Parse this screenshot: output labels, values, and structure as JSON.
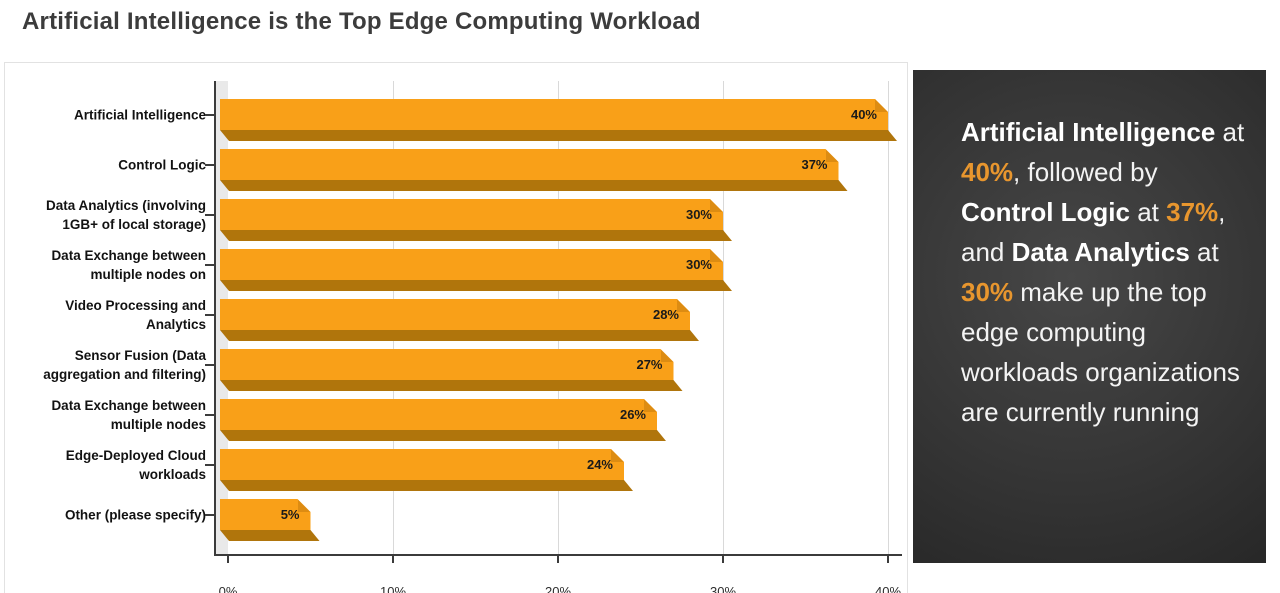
{
  "title": "Artificial Intelligence is the Top Edge Computing Workload",
  "chart_data": {
    "type": "bar",
    "orientation": "horizontal",
    "title": "Artificial Intelligence is the Top Edge Computing Workload",
    "categories": [
      "Artificial Intelligence",
      "Control Logic",
      "Data Analytics (involving 1GB+ of local storage)",
      "Data Exchange between multiple nodes on",
      "Video Processing and Analytics",
      "Sensor Fusion (Data aggregation and filtering)",
      "Data Exchange between multiple nodes",
      "Edge-Deployed Cloud workloads",
      "Other (please specify)"
    ],
    "label_lines": [
      [
        "Artificial Intelligence"
      ],
      [
        "Control Logic"
      ],
      [
        "Data Analytics (involving",
        "1GB+ of local storage)"
      ],
      [
        "Data Exchange between",
        "multiple nodes on"
      ],
      [
        "Video Processing and",
        "Analytics"
      ],
      [
        "Sensor Fusion (Data",
        "aggregation and filtering)"
      ],
      [
        "Data Exchange between",
        "multiple nodes"
      ],
      [
        "Edge-Deployed Cloud",
        "workloads"
      ],
      [
        "Other (please specify)"
      ]
    ],
    "values": [
      40,
      37,
      30,
      30,
      28,
      27,
      26,
      24,
      5
    ],
    "value_labels": [
      "40%",
      "37%",
      "30%",
      "30%",
      "28%",
      "27%",
      "26%",
      "24%",
      "5%"
    ],
    "xlabel": "",
    "ylabel": "",
    "xlim": [
      0,
      40
    ],
    "x_ticks": [
      {
        "value": 0,
        "label": "0%"
      },
      {
        "value": 10,
        "label": "10%"
      },
      {
        "value": 20,
        "label": "20%"
      },
      {
        "value": 30,
        "label": "30%"
      },
      {
        "value": 40,
        "label": "40%"
      }
    ],
    "grid": "vertical",
    "legend": "none",
    "bar_color": "#f9a018",
    "bar_shadow_color": "#b0750c"
  },
  "callout": {
    "accent_color": "#e8962e",
    "segments": [
      {
        "text": "Artificial Intelligence",
        "bold": true,
        "accent": false
      },
      {
        "text": " at ",
        "bold": false,
        "accent": false
      },
      {
        "text": "40%",
        "bold": true,
        "accent": true
      },
      {
        "text": ", followed by ",
        "bold": false,
        "accent": false
      },
      {
        "text": "Control Logic",
        "bold": true,
        "accent": false
      },
      {
        "text": " at ",
        "bold": false,
        "accent": false
      },
      {
        "text": "37%",
        "bold": true,
        "accent": true
      },
      {
        "text": ", and ",
        "bold": false,
        "accent": false
      },
      {
        "text": "Data Analytics",
        "bold": true,
        "accent": false
      },
      {
        "text": " at ",
        "bold": false,
        "accent": false
      },
      {
        "text": "30%",
        "bold": true,
        "accent": true
      },
      {
        "text": " make up the top edge computing workloads organizations are currently running",
        "bold": false,
        "accent": false
      }
    ]
  }
}
